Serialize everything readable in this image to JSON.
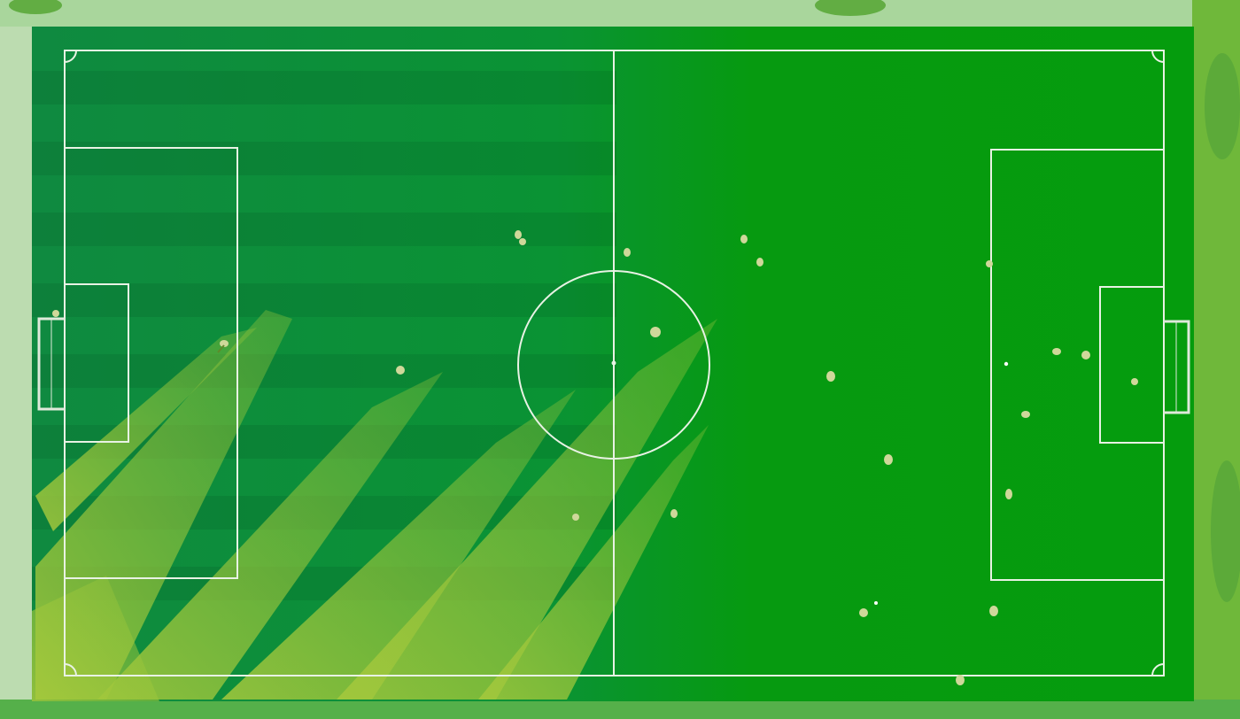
{
  "scene": {
    "subject": "aerial-football-pitch",
    "colors": {
      "surround": "#8dcf86",
      "left_verge": "#bcdcb0",
      "right_verge": "#6fb83a",
      "pitch_light": "#069a10",
      "pitch_dark": "#088c3a",
      "sun_streak": "#9ac43a",
      "line": "#e8f2e4",
      "player": "#cfd89a",
      "player_shadow": "#5f8a2a"
    }
  }
}
